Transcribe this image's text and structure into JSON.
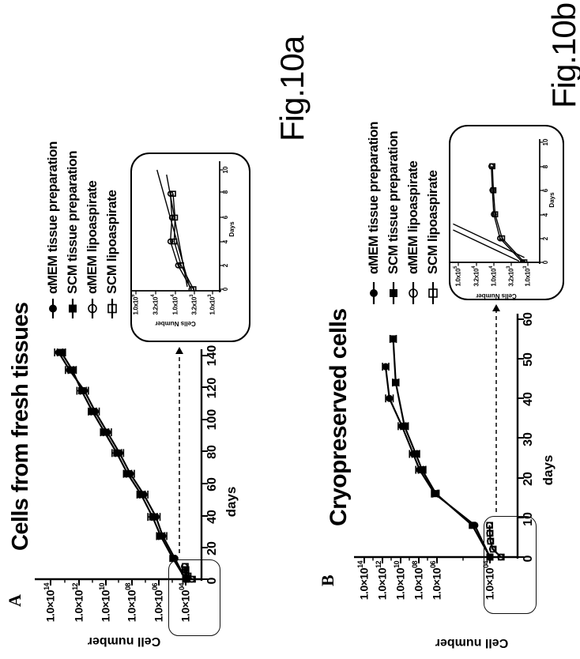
{
  "page": {
    "background": "#ffffff",
    "fig_a_label": "Fig.10a",
    "fig_b_label": "Fig.10b"
  },
  "panelA": {
    "panel_letter": "A",
    "title": "Cells from fresh tissues",
    "xlabel": "days",
    "ylabel": "Cell number",
    "yticks": [
      {
        "base": "1.0×10",
        "exp": "14"
      },
      {
        "base": "1.0×10",
        "exp": "12"
      },
      {
        "base": "1.0×10",
        "exp": "10"
      },
      {
        "base": "1.0×10",
        "exp": "08"
      },
      {
        "base": "1.0×10",
        "exp": "06"
      },
      {
        "base": "1.0×10",
        "exp": "04"
      }
    ],
    "xticks": [
      "0",
      "20",
      "40",
      "60",
      "80",
      "100",
      "120",
      "140"
    ],
    "legend": [
      {
        "label": "αMEM tissue preparation",
        "marker": "filled-circle"
      },
      {
        "label": "SCM tissue preparation",
        "marker": "filled-square"
      },
      {
        "label": "αMEM lipoaspirate",
        "marker": "open-circle"
      },
      {
        "label": "SCM lipoaspirate",
        "marker": "open-square"
      }
    ],
    "inset": {
      "xlabel": "Days",
      "ylabel": "Cells Number",
      "yticks": [
        {
          "base": "1.0x10",
          "exp": "5"
        },
        {
          "base": "3.2x10",
          "exp": "4"
        },
        {
          "base": "1.0x10",
          "exp": "4"
        },
        {
          "base": "3.2x10",
          "exp": "3"
        },
        {
          "base": "1.0x10",
          "exp": "3"
        }
      ],
      "xticks": [
        "0",
        "2",
        "4",
        "6",
        "8",
        "10"
      ]
    }
  },
  "panelB": {
    "panel_letter": "B",
    "title": "Cryopreserved cells",
    "xlabel": "days",
    "ylabel": "Cell number",
    "yticks": [
      {
        "base": "1.0×10",
        "exp": "14"
      },
      {
        "base": "1.0×10",
        "exp": "12"
      },
      {
        "base": "1.0×10",
        "exp": "10"
      },
      {
        "base": "1.0×10",
        "exp": "08"
      },
      {
        "base": "1.0×10",
        "exp": "06"
      },
      {
        "base": "1.0×10",
        "exp": "04"
      }
    ],
    "xticks": [
      "0",
      "10",
      "20",
      "30",
      "40",
      "50",
      "60"
    ],
    "legend": [
      {
        "label": "αMEM tissue preparation",
        "marker": "filled-circle"
      },
      {
        "label": "SCM tissue preparation",
        "marker": "filled-square"
      },
      {
        "label": "αMEM lipoaspirate",
        "marker": "open-circle"
      },
      {
        "label": "SCM lipoaspirate",
        "marker": "open-square"
      }
    ],
    "inset": {
      "xlabel": "Days",
      "ylabel": "Cells Number",
      "yticks": [
        {
          "base": "1.0x10",
          "exp": "5"
        },
        {
          "base": "3.2x10",
          "exp": "4"
        },
        {
          "base": "1.0x10",
          "exp": "4"
        },
        {
          "base": "3.2x10",
          "exp": "3"
        },
        {
          "base": "1.0x10",
          "exp": "3"
        }
      ],
      "xticks": [
        "0",
        "2",
        "4",
        "6",
        "8",
        "10"
      ]
    }
  },
  "chart_data": [
    {
      "id": "fig10a",
      "type": "line",
      "title": "Cells from fresh tissues",
      "xlabel": "days",
      "ylabel": "Cell number",
      "x_range": [
        0,
        140
      ],
      "y_scale": "log10",
      "y_tick_labels": [
        "1.0x10^14",
        "1.0x10^12",
        "1.0x10^10",
        "1.0x10^08",
        "1.0x10^06",
        "1.0x10^04"
      ],
      "series": [
        {
          "name": "αMEM tissue preparation",
          "marker": "filled-circle",
          "days": [
            0,
            13,
            27,
            39,
            53,
            66,
            79,
            92,
            105,
            118,
            131,
            142
          ],
          "log10_cells": [
            4.0,
            4.8,
            5.7,
            6.2,
            7.1,
            8.1,
            8.9,
            9.8,
            10.7,
            11.5,
            12.6,
            13.4
          ],
          "err_log10": [
            0,
            0,
            0.3,
            0.3,
            0.3,
            0.3,
            0.3,
            0.3,
            0.3,
            0.3,
            0.3,
            0.3
          ]
        },
        {
          "name": "SCM tissue preparation",
          "marker": "filled-square",
          "days": [
            0,
            13,
            27,
            39,
            53,
            66,
            79,
            92,
            105,
            118,
            131,
            142
          ],
          "log10_cells": [
            4.0,
            4.95,
            5.85,
            6.45,
            7.3,
            8.3,
            9.1,
            10.0,
            10.9,
            11.7,
            12.4,
            13.2
          ],
          "err_log10": [
            0,
            0,
            0.3,
            0.35,
            0.3,
            0.3,
            0.35,
            0.3,
            0.3,
            0.35,
            0.3,
            0.3
          ]
        },
        {
          "name": "αMEM lipoaspirate",
          "marker": "open-circle",
          "days": [
            0,
            2,
            4,
            6,
            8
          ],
          "log10_cells": [
            3.55,
            3.9,
            4.1,
            4.06,
            4.1
          ]
        },
        {
          "name": "SCM lipoaspirate",
          "marker": "open-square",
          "days": [
            0,
            2,
            4,
            6,
            8
          ],
          "log10_cells": [
            3.5,
            3.82,
            4.0,
            3.98,
            4.03
          ]
        }
      ],
      "inset": {
        "xlabel": "Days",
        "ylabel": "Cells Number",
        "x_range": [
          0,
          10
        ],
        "y_tick_labels": [
          "1.0x10^5",
          "3.2x10^4",
          "1.0x10^4",
          "3.2x10^3",
          "1.0x10^3"
        ],
        "lines": [
          [
            [
              0.2,
              3.6
            ],
            [
              10,
              4.45
            ]
          ],
          [
            [
              0.2,
              3.66
            ],
            [
              9.6,
              4.2
            ]
          ]
        ]
      },
      "annotation": "dashed arrow from zoom box at origin to inset detail plot"
    },
    {
      "id": "fig10b",
      "type": "line",
      "title": "Cryopreserved cells",
      "xlabel": "days",
      "ylabel": "Cell number",
      "x_range": [
        0,
        60
      ],
      "y_scale": "log10",
      "y_tick_labels": [
        "1.0x10^14",
        "1.0x10^12",
        "1.0x10^10",
        "1.0x10^08",
        "1.0x10^06",
        "1.0x10^04"
      ],
      "series": [
        {
          "name": "αMEM tissue preparation",
          "marker": "filled-circle",
          "days": [
            0,
            8,
            16,
            22,
            26,
            33,
            40,
            48
          ],
          "log10_cells": [
            4.0,
            5.2,
            8.4,
            9.6,
            10.1,
            11.0,
            12.0,
            12.3
          ],
          "err_log10": [
            0,
            0,
            0.25,
            0.3,
            0.3,
            0.3,
            0.3,
            0.25
          ]
        },
        {
          "name": "SCM tissue preparation",
          "marker": "filled-square",
          "days": [
            0,
            8,
            16,
            22,
            26,
            33,
            44,
            55
          ],
          "log10_cells": [
            4.0,
            5.4,
            8.3,
            9.4,
            9.9,
            10.8,
            11.5,
            11.7
          ],
          "err_log10": [
            0,
            0,
            0.25,
            0.3,
            0.3,
            0.3,
            0.25,
            0.25
          ]
        },
        {
          "name": "αMEM lipoaspirate",
          "marker": "open-circle",
          "days": [
            0,
            2,
            4,
            6,
            8
          ],
          "log10_cells": [
            3.15,
            3.8,
            3.98,
            4.02,
            4.05
          ]
        },
        {
          "name": "SCM lipoaspirate",
          "marker": "open-square",
          "days": [
            0,
            2,
            4,
            6,
            8
          ],
          "log10_cells": [
            3.1,
            3.74,
            3.94,
            3.99,
            4.02
          ]
        }
      ],
      "inset": {
        "xlabel": "Days",
        "ylabel": "Cells Number",
        "x_range": [
          0,
          10
        ],
        "y_tick_labels": [
          "1.0x10^5",
          "3.2x10^4",
          "1.0x10^4",
          "3.2x10^3",
          "1.0x10^3"
        ],
        "lines": [
          [
            [
              0.1,
              3.25
            ],
            [
              2.7,
              5.15
            ]
          ],
          [
            [
              0.4,
              3.1
            ],
            [
              3.2,
              5.15
            ]
          ]
        ]
      },
      "annotation": "dashed arrow from zoom box at origin to inset detail plot"
    }
  ]
}
